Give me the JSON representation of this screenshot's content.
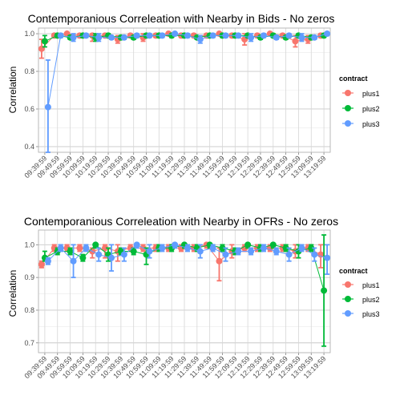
{
  "chart_data": [
    {
      "type": "line",
      "title": "Contemporanious Correleation with Nearby in Bids - No zeros",
      "xlabel": "",
      "ylabel": "Correlation",
      "ylim": [
        0.37,
        1.03
      ],
      "yticks": [
        0.4,
        0.6,
        0.8,
        1.0
      ],
      "ytick_labels": [
        "0.4",
        "0.6",
        "0.8",
        "1.0"
      ],
      "x": [
        "09:39:59",
        "09:49:59",
        "09:59:59",
        "10:09:59",
        "10:19:59",
        "10:29:59",
        "10:39:59",
        "10:49:59",
        "10:59:59",
        "11:09:59",
        "11:19:59",
        "11:29:59",
        "11:39:59",
        "11:49:59",
        "11:59:59",
        "12:09:59",
        "12:19:59",
        "12:29:59",
        "12:39:59",
        "12:49:59",
        "12:59:59",
        "13:09:59",
        "13:19:59"
      ],
      "grid": true,
      "error_bars": true,
      "legend": {
        "title": "contract",
        "position": "right"
      },
      "series": [
        {
          "name": "plus1",
          "color": "#F8766D",
          "values": [
            0.92,
            0.99,
            1.0,
            0.99,
            0.99,
            0.99,
            0.97,
            0.99,
            0.98,
            0.99,
            1.0,
            0.99,
            0.99,
            0.99,
            1.0,
            0.99,
            0.97,
            0.99,
            1.0,
            0.99,
            0.96,
            0.97,
            0.99
          ],
          "lower": [
            0.87,
            0.98,
            0.99,
            0.98,
            0.96,
            0.98,
            0.95,
            0.98,
            0.96,
            0.98,
            0.99,
            0.98,
            0.98,
            0.98,
            0.99,
            0.98,
            0.94,
            0.98,
            0.99,
            0.98,
            0.93,
            0.95,
            0.98
          ],
          "upper": [
            0.97,
            1.0,
            1.0,
            1.0,
            1.0,
            1.0,
            0.99,
            1.0,
            1.0,
            1.0,
            1.0,
            1.0,
            1.0,
            1.0,
            1.0,
            1.0,
            1.0,
            1.0,
            1.0,
            1.0,
            0.99,
            0.99,
            1.0
          ]
        },
        {
          "name": "plus2",
          "color": "#00BA38",
          "values": [
            0.96,
            0.99,
            0.98,
            0.99,
            0.98,
            0.99,
            0.98,
            0.98,
            0.99,
            0.99,
            0.99,
            0.99,
            0.98,
            0.99,
            0.99,
            0.99,
            0.99,
            0.98,
            0.99,
            0.98,
            0.99,
            0.98,
            0.99
          ],
          "lower": [
            0.93,
            0.98,
            0.97,
            0.98,
            0.96,
            0.98,
            0.97,
            0.97,
            0.98,
            0.98,
            0.98,
            0.98,
            0.97,
            0.98,
            0.98,
            0.98,
            0.98,
            0.97,
            0.98,
            0.97,
            0.98,
            0.97,
            0.98
          ],
          "upper": [
            0.99,
            1.0,
            0.99,
            1.0,
            1.0,
            1.0,
            0.99,
            0.99,
            1.0,
            1.0,
            1.0,
            1.0,
            0.99,
            1.0,
            1.0,
            1.0,
            1.0,
            0.99,
            1.0,
            0.99,
            1.0,
            0.99,
            1.0
          ]
        },
        {
          "name": "plus3",
          "color": "#619CFF",
          "values": [
            0.61,
            0.99,
            0.98,
            0.99,
            0.98,
            0.98,
            0.98,
            0.99,
            0.99,
            0.99,
            1.0,
            0.99,
            0.97,
            0.99,
            0.99,
            0.99,
            0.98,
            0.99,
            0.98,
            0.99,
            0.98,
            0.98,
            1.0
          ],
          "lower": [
            0.37,
            0.98,
            0.96,
            0.98,
            0.96,
            0.97,
            0.97,
            0.98,
            0.98,
            0.98,
            0.99,
            0.98,
            0.95,
            0.98,
            0.98,
            0.98,
            0.96,
            0.98,
            0.97,
            0.98,
            0.96,
            0.97,
            0.99
          ],
          "upper": [
            0.86,
            1.0,
            1.0,
            1.0,
            1.0,
            0.99,
            0.99,
            1.0,
            1.0,
            1.0,
            1.0,
            1.0,
            0.99,
            1.0,
            1.0,
            1.0,
            1.0,
            1.0,
            0.99,
            1.0,
            1.0,
            0.99,
            1.0
          ]
        }
      ]
    },
    {
      "type": "line",
      "title": "Contemporanious Correleation with Nearby in OFRs - No zeros",
      "xlabel": "",
      "ylabel": "Correlation",
      "ylim": [
        0.67,
        1.045
      ],
      "yticks": [
        0.7,
        0.8,
        0.9,
        1.0
      ],
      "ytick_labels": [
        "0.7",
        "0.8",
        "0.9",
        "1.0"
      ],
      "x": [
        "09:39:59",
        "09:49:59",
        "09:59:59",
        "10:09:59",
        "10:19:59",
        "10:29:59",
        "10:39:59",
        "10:49:59",
        "10:59:59",
        "11:09:59",
        "11:19:59",
        "11:29:59",
        "11:39:59",
        "11:49:59",
        "11:59:59",
        "12:09:59",
        "12:19:59",
        "12:29:59",
        "12:39:59",
        "12:49:59",
        "12:59:59",
        "13:09:59",
        "13:19:59"
      ],
      "grid": true,
      "error_bars": true,
      "legend": {
        "title": "contract",
        "position": "right"
      },
      "series": [
        {
          "name": "plus1",
          "color": "#F8766D",
          "values": [
            0.94,
            0.99,
            0.99,
            0.99,
            0.98,
            0.99,
            0.98,
            0.99,
            0.99,
            0.99,
            0.99,
            0.99,
            0.99,
            1.0,
            0.95,
            0.98,
            0.99,
            0.99,
            0.99,
            0.99,
            0.98,
            0.99,
            0.97
          ],
          "lower": [
            0.93,
            0.98,
            0.98,
            0.98,
            0.96,
            0.96,
            0.95,
            0.98,
            0.98,
            0.98,
            0.98,
            0.98,
            0.98,
            0.99,
            0.89,
            0.96,
            0.98,
            0.98,
            0.98,
            0.98,
            0.96,
            0.98,
            0.93
          ],
          "upper": [
            0.95,
            1.0,
            1.0,
            1.0,
            0.99,
            1.0,
            1.0,
            1.0,
            1.0,
            1.0,
            1.0,
            1.0,
            1.0,
            1.0,
            0.99,
            1.0,
            1.0,
            1.0,
            1.0,
            1.0,
            1.0,
            1.0,
            1.0
          ]
        },
        {
          "name": "plus2",
          "color": "#00BA38",
          "values": [
            0.96,
            0.98,
            0.98,
            0.96,
            1.0,
            0.97,
            0.98,
            0.98,
            0.97,
            0.99,
            0.99,
            1.0,
            0.99,
            1.0,
            0.99,
            0.98,
            1.0,
            0.99,
            1.0,
            0.99,
            0.98,
            0.99,
            0.86
          ],
          "lower": [
            0.95,
            0.97,
            0.97,
            0.95,
            0.99,
            0.95,
            0.97,
            0.97,
            0.94,
            0.98,
            0.98,
            0.99,
            0.98,
            0.99,
            0.98,
            0.97,
            0.99,
            0.98,
            0.99,
            0.98,
            0.96,
            0.98,
            0.69
          ],
          "upper": [
            0.98,
            0.99,
            0.99,
            0.97,
            1.0,
            0.99,
            0.99,
            0.99,
            0.99,
            1.0,
            1.0,
            1.0,
            1.0,
            1.0,
            1.0,
            0.99,
            1.0,
            1.0,
            1.0,
            1.0,
            1.0,
            1.0,
            1.03
          ]
        },
        {
          "name": "plus3",
          "color": "#619CFF",
          "values": [
            0.95,
            0.99,
            0.95,
            0.99,
            0.97,
            0.96,
            0.97,
            1.0,
            0.98,
            0.99,
            1.0,
            0.99,
            0.98,
            0.99,
            0.97,
            0.98,
            0.98,
            0.99,
            0.98,
            0.97,
            0.99,
            0.97,
            0.96
          ],
          "lower": [
            0.94,
            0.98,
            0.9,
            0.98,
            0.95,
            0.92,
            0.95,
            0.99,
            0.96,
            0.98,
            0.99,
            0.98,
            0.96,
            0.98,
            0.95,
            0.97,
            0.97,
            0.98,
            0.97,
            0.95,
            0.98,
            0.95,
            0.91
          ],
          "upper": [
            0.96,
            1.0,
            1.0,
            1.0,
            0.99,
            1.0,
            0.99,
            1.0,
            1.0,
            1.0,
            1.0,
            1.0,
            1.0,
            1.0,
            0.99,
            0.99,
            0.99,
            1.0,
            0.99,
            0.99,
            1.0,
            0.99,
            1.0
          ]
        }
      ]
    }
  ]
}
